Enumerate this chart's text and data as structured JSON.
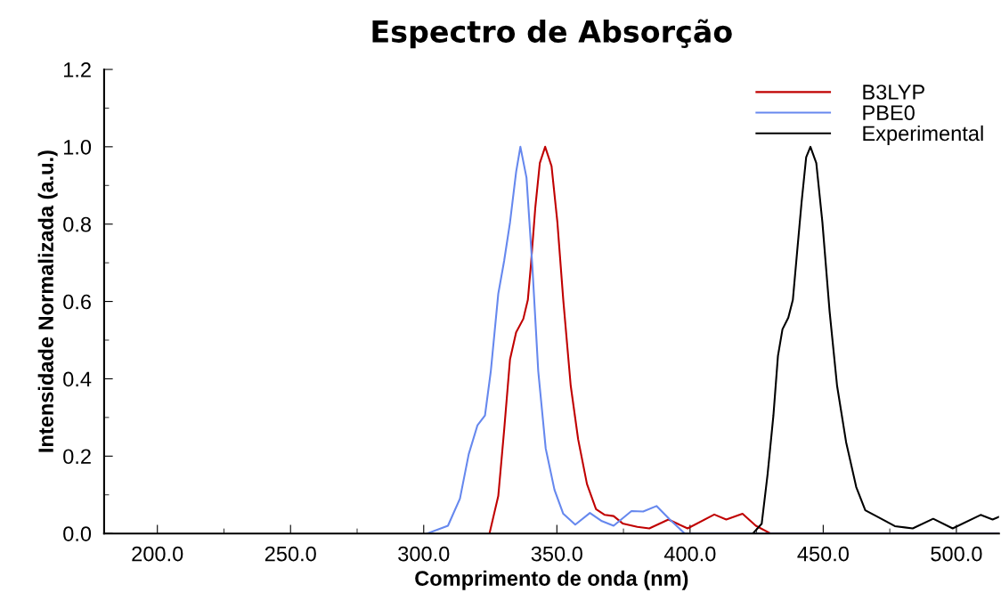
{
  "chart_data": {
    "type": "line",
    "title": "Espectro de Absorção",
    "xlabel": "Comprimento de onda (nm)",
    "ylabel": "Intensidade Normalizada (a.u.)",
    "xlim": [
      180,
      516
    ],
    "ylim": [
      0,
      1.2
    ],
    "xticks": [
      {
        "value": 200,
        "label": "200.0"
      },
      {
        "value": 250,
        "label": "250.0"
      },
      {
        "value": 300,
        "label": "300.0"
      },
      {
        "value": 350,
        "label": "350.0"
      },
      {
        "value": 400,
        "label": "400.0"
      },
      {
        "value": 450,
        "label": "450.0"
      },
      {
        "value": 500,
        "label": "500.0"
      }
    ],
    "yticks": [
      {
        "value": 0,
        "label": "0.0"
      },
      {
        "value": 0.2,
        "label": "0.2"
      },
      {
        "value": 0.4,
        "label": "0.4"
      },
      {
        "value": 0.6,
        "label": "0.6"
      },
      {
        "value": 0.8,
        "label": "0.8"
      },
      {
        "value": 1.0,
        "label": "1.0"
      },
      {
        "value": 1.2,
        "label": "1.2"
      }
    ],
    "grid": false,
    "legend": "top right",
    "marker": "none",
    "line_style": "solid",
    "series": [
      {
        "name": "B3LYP",
        "color": "#c00000",
        "x": [
          324.7,
          328,
          330.2,
          332.4,
          334.7,
          337.4,
          339.1,
          340.2,
          341.9,
          343.6,
          345.6,
          348,
          350.2,
          352.4,
          355.2,
          358,
          361.3,
          364.7,
          368,
          371.3,
          374.7,
          380.2,
          384.7,
          391.9,
          399.1,
          409.1,
          413.6,
          419.7,
          424.7,
          430.2,
          516
        ],
        "values": [
          0,
          0.097,
          0.267,
          0.45,
          0.52,
          0.555,
          0.604,
          0.69,
          0.843,
          0.958,
          1.0,
          0.95,
          0.804,
          0.604,
          0.382,
          0.243,
          0.128,
          0.063,
          0.048,
          0.045,
          0.026,
          0.017,
          0.013,
          0.036,
          0.013,
          0.049,
          0.036,
          0.051,
          0.02,
          0,
          0
        ]
      },
      {
        "name": "PBE0",
        "color": "#6688ee",
        "x": [
          301.3,
          309.1,
          313.6,
          316.9,
          320.2,
          323,
          325.2,
          328,
          330.2,
          332.4,
          334.7,
          336.3,
          338.6,
          340.8,
          343,
          345.8,
          349.1,
          352.4,
          356.9,
          362.4,
          366.9,
          371.3,
          378,
          382.4,
          387.4,
          392.4,
          398,
          516
        ],
        "values": [
          0,
          0.02,
          0.09,
          0.205,
          0.28,
          0.305,
          0.42,
          0.62,
          0.705,
          0.804,
          0.935,
          1.0,
          0.92,
          0.69,
          0.42,
          0.22,
          0.113,
          0.051,
          0.023,
          0.053,
          0.032,
          0.02,
          0.058,
          0.057,
          0.071,
          0.036,
          0,
          0
        ]
      },
      {
        "name": "Experimental",
        "color": "#000000",
        "x": [
          423.6,
          426.9,
          429.1,
          431.3,
          433,
          434.7,
          436.9,
          438.6,
          440.2,
          441.9,
          443.6,
          445.2,
          447.4,
          449.7,
          452.4,
          455.2,
          458.6,
          462.4,
          465.8,
          469.1,
          472.4,
          476.9,
          483.6,
          491.3,
          498.6,
          509.1,
          513.6,
          516
        ],
        "values": [
          0,
          0.025,
          0.152,
          0.305,
          0.459,
          0.528,
          0.558,
          0.604,
          0.728,
          0.858,
          0.973,
          1.0,
          0.958,
          0.804,
          0.574,
          0.382,
          0.236,
          0.12,
          0.06,
          0.048,
          0.036,
          0.019,
          0.013,
          0.038,
          0.013,
          0.048,
          0.036,
          0.043
        ]
      }
    ]
  }
}
